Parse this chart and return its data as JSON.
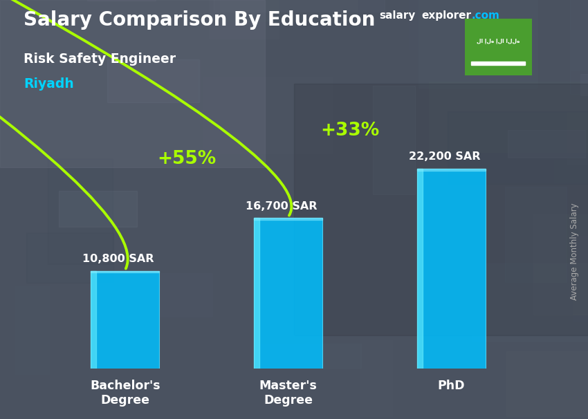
{
  "title_main": "Salary Comparison By Education",
  "title_main_color": "#ffffff",
  "subtitle": "Risk Safety Engineer",
  "subtitle_color": "#ffffff",
  "city": "Riyadh",
  "city_color": "#00d4ff",
  "categories": [
    "Bachelor's\nDegree",
    "Master's\nDegree",
    "PhD"
  ],
  "values": [
    10800,
    16700,
    22200
  ],
  "value_labels": [
    "10,800 SAR",
    "16,700 SAR",
    "22,200 SAR"
  ],
  "bar_color": "#00bfff",
  "pct_labels": [
    "+55%",
    "+33%"
  ],
  "pct_color": "#aaff00",
  "bg_color": "#5a6068",
  "ylabel_rotated": "Average Monthly Salary",
  "ylabel_color": "#aaaaaa",
  "site_salary": "salary",
  "site_explorer": "explorer",
  "site_dot_com": ".com",
  "site_color_salary": "#ffffff",
  "site_color_explorer": "#ffffff",
  "site_color_com": "#00bfff",
  "flag_color": "#4a9e2f",
  "ylim_max": 26000,
  "arrow_color": "#aaff00",
  "val_label_offsets": [
    800,
    900,
    900
  ]
}
